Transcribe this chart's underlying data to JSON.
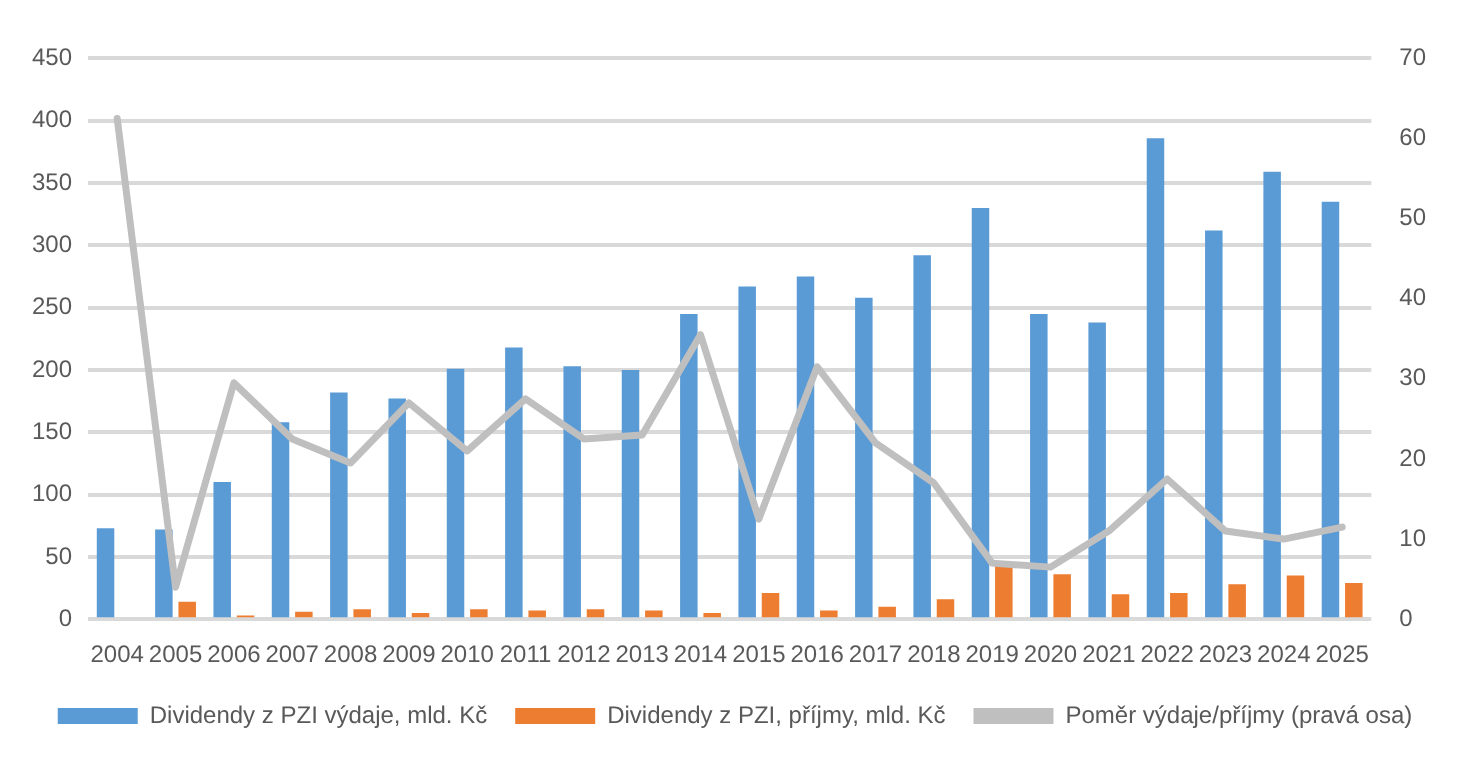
{
  "chart_data": {
    "type": "bar",
    "categories": [
      "2004",
      "2005",
      "2006",
      "2007",
      "2008",
      "2009",
      "2010",
      "2011",
      "2012",
      "2013",
      "2014",
      "2015",
      "2016",
      "2017",
      "2018",
      "2019",
      "2020",
      "2021",
      "2022",
      "2023",
      "2024",
      "2025"
    ],
    "series": [
      {
        "name": "Dividendy z PZI výdaje, mld. Kč",
        "color": "#5b9bd5",
        "values": [
          73,
          72,
          110,
          158,
          182,
          177,
          201,
          218,
          203,
          200,
          245,
          267,
          275,
          258,
          292,
          330,
          245,
          238,
          386,
          312,
          359,
          335
        ]
      },
      {
        "name": "Dividendy z PZI, příjmy, mld. Kč",
        "color": "#ed7d31",
        "values": [
          null,
          14,
          3,
          6,
          8,
          5,
          8,
          7,
          8,
          7,
          5,
          21,
          7,
          10,
          16,
          45,
          36,
          20,
          21,
          28,
          35,
          29
        ]
      },
      {
        "name": "Poměr výdaje/příjmy (pravá osa)",
        "type": "line",
        "axis": "y2",
        "color": "#bfbfbf",
        "values": [
          62.5,
          4,
          29.5,
          22.5,
          19.5,
          27,
          21,
          27.5,
          22.5,
          23,
          35.5,
          12.5,
          31.5,
          22,
          17,
          7,
          6.5,
          11,
          17.5,
          11,
          10,
          11.5
        ]
      }
    ],
    "ylim": [
      0,
      450
    ],
    "yticks": [
      0,
      50,
      100,
      150,
      200,
      250,
      300,
      350,
      400,
      450
    ],
    "y2lim": [
      0,
      70
    ],
    "y2ticks": [
      0,
      10,
      20,
      30,
      40,
      50,
      60,
      70
    ],
    "grid": "y",
    "legend": "bottom",
    "marker": "none",
    "line_style": "solid"
  }
}
